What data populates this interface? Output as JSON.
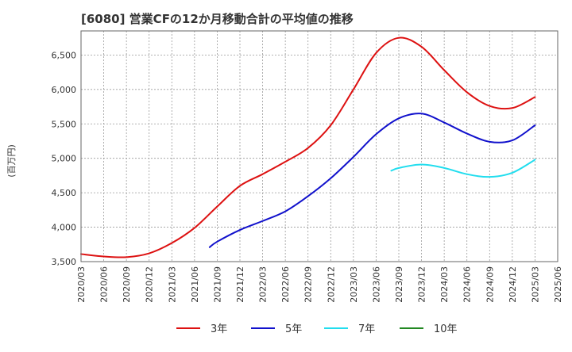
{
  "chart_data": {
    "type": "line",
    "title": "[6080]  営業CFの12か月移動合計の平均値の推移",
    "ylabel": "(百万円)",
    "xlabel": "",
    "ylim": [
      3500,
      6850
    ],
    "yticks": [
      3500,
      4000,
      4500,
      5000,
      5500,
      6000,
      6500
    ],
    "ytick_labels": [
      "3,500",
      "4,000",
      "4,500",
      "5,000",
      "5,500",
      "6,000",
      "6,500"
    ],
    "xticks": [
      "2020/03",
      "2020/06",
      "2020/09",
      "2020/12",
      "2021/03",
      "2021/06",
      "2021/09",
      "2021/12",
      "2022/03",
      "2022/06",
      "2022/09",
      "2022/12",
      "2023/03",
      "2023/06",
      "2023/09",
      "2023/12",
      "2024/03",
      "2024/06",
      "2024/09",
      "2024/12",
      "2025/03",
      "2025/06"
    ],
    "grid": true,
    "legend_position": "bottom",
    "series": [
      {
        "name": "3年",
        "color": "#dd1111",
        "x": [
          "2020/03",
          "2020/06",
          "2020/09",
          "2020/12",
          "2021/03",
          "2021/06",
          "2021/09",
          "2021/12",
          "2022/03",
          "2022/06",
          "2022/09",
          "2022/12",
          "2023/03",
          "2023/06",
          "2023/09",
          "2023/12",
          "2024/03",
          "2024/06",
          "2024/09",
          "2024/12",
          "2025/03"
        ],
        "values": [
          3610,
          3575,
          3565,
          3620,
          3770,
          3990,
          4300,
          4600,
          4770,
          4950,
          5150,
          5480,
          6000,
          6530,
          6750,
          6620,
          6280,
          5960,
          5760,
          5730,
          5890
        ]
      },
      {
        "name": "5年",
        "color": "#1111cc",
        "x": [
          "2021/08",
          "2021/09",
          "2021/12",
          "2022/03",
          "2022/06",
          "2022/09",
          "2022/12",
          "2023/03",
          "2023/06",
          "2023/09",
          "2023/12",
          "2024/03",
          "2024/06",
          "2024/09",
          "2024/12",
          "2025/03"
        ],
        "values": [
          3710,
          3790,
          3960,
          4090,
          4230,
          4450,
          4710,
          5020,
          5350,
          5580,
          5650,
          5520,
          5360,
          5240,
          5260,
          5480
        ]
      },
      {
        "name": "7年",
        "color": "#22ddee",
        "x": [
          "2023/08",
          "2023/09",
          "2023/12",
          "2024/03",
          "2024/06",
          "2024/09",
          "2024/12",
          "2025/03"
        ],
        "values": [
          4820,
          4860,
          4910,
          4860,
          4770,
          4730,
          4790,
          4980
        ]
      },
      {
        "name": "10年",
        "color": "#228822",
        "x": [],
        "values": []
      }
    ]
  }
}
